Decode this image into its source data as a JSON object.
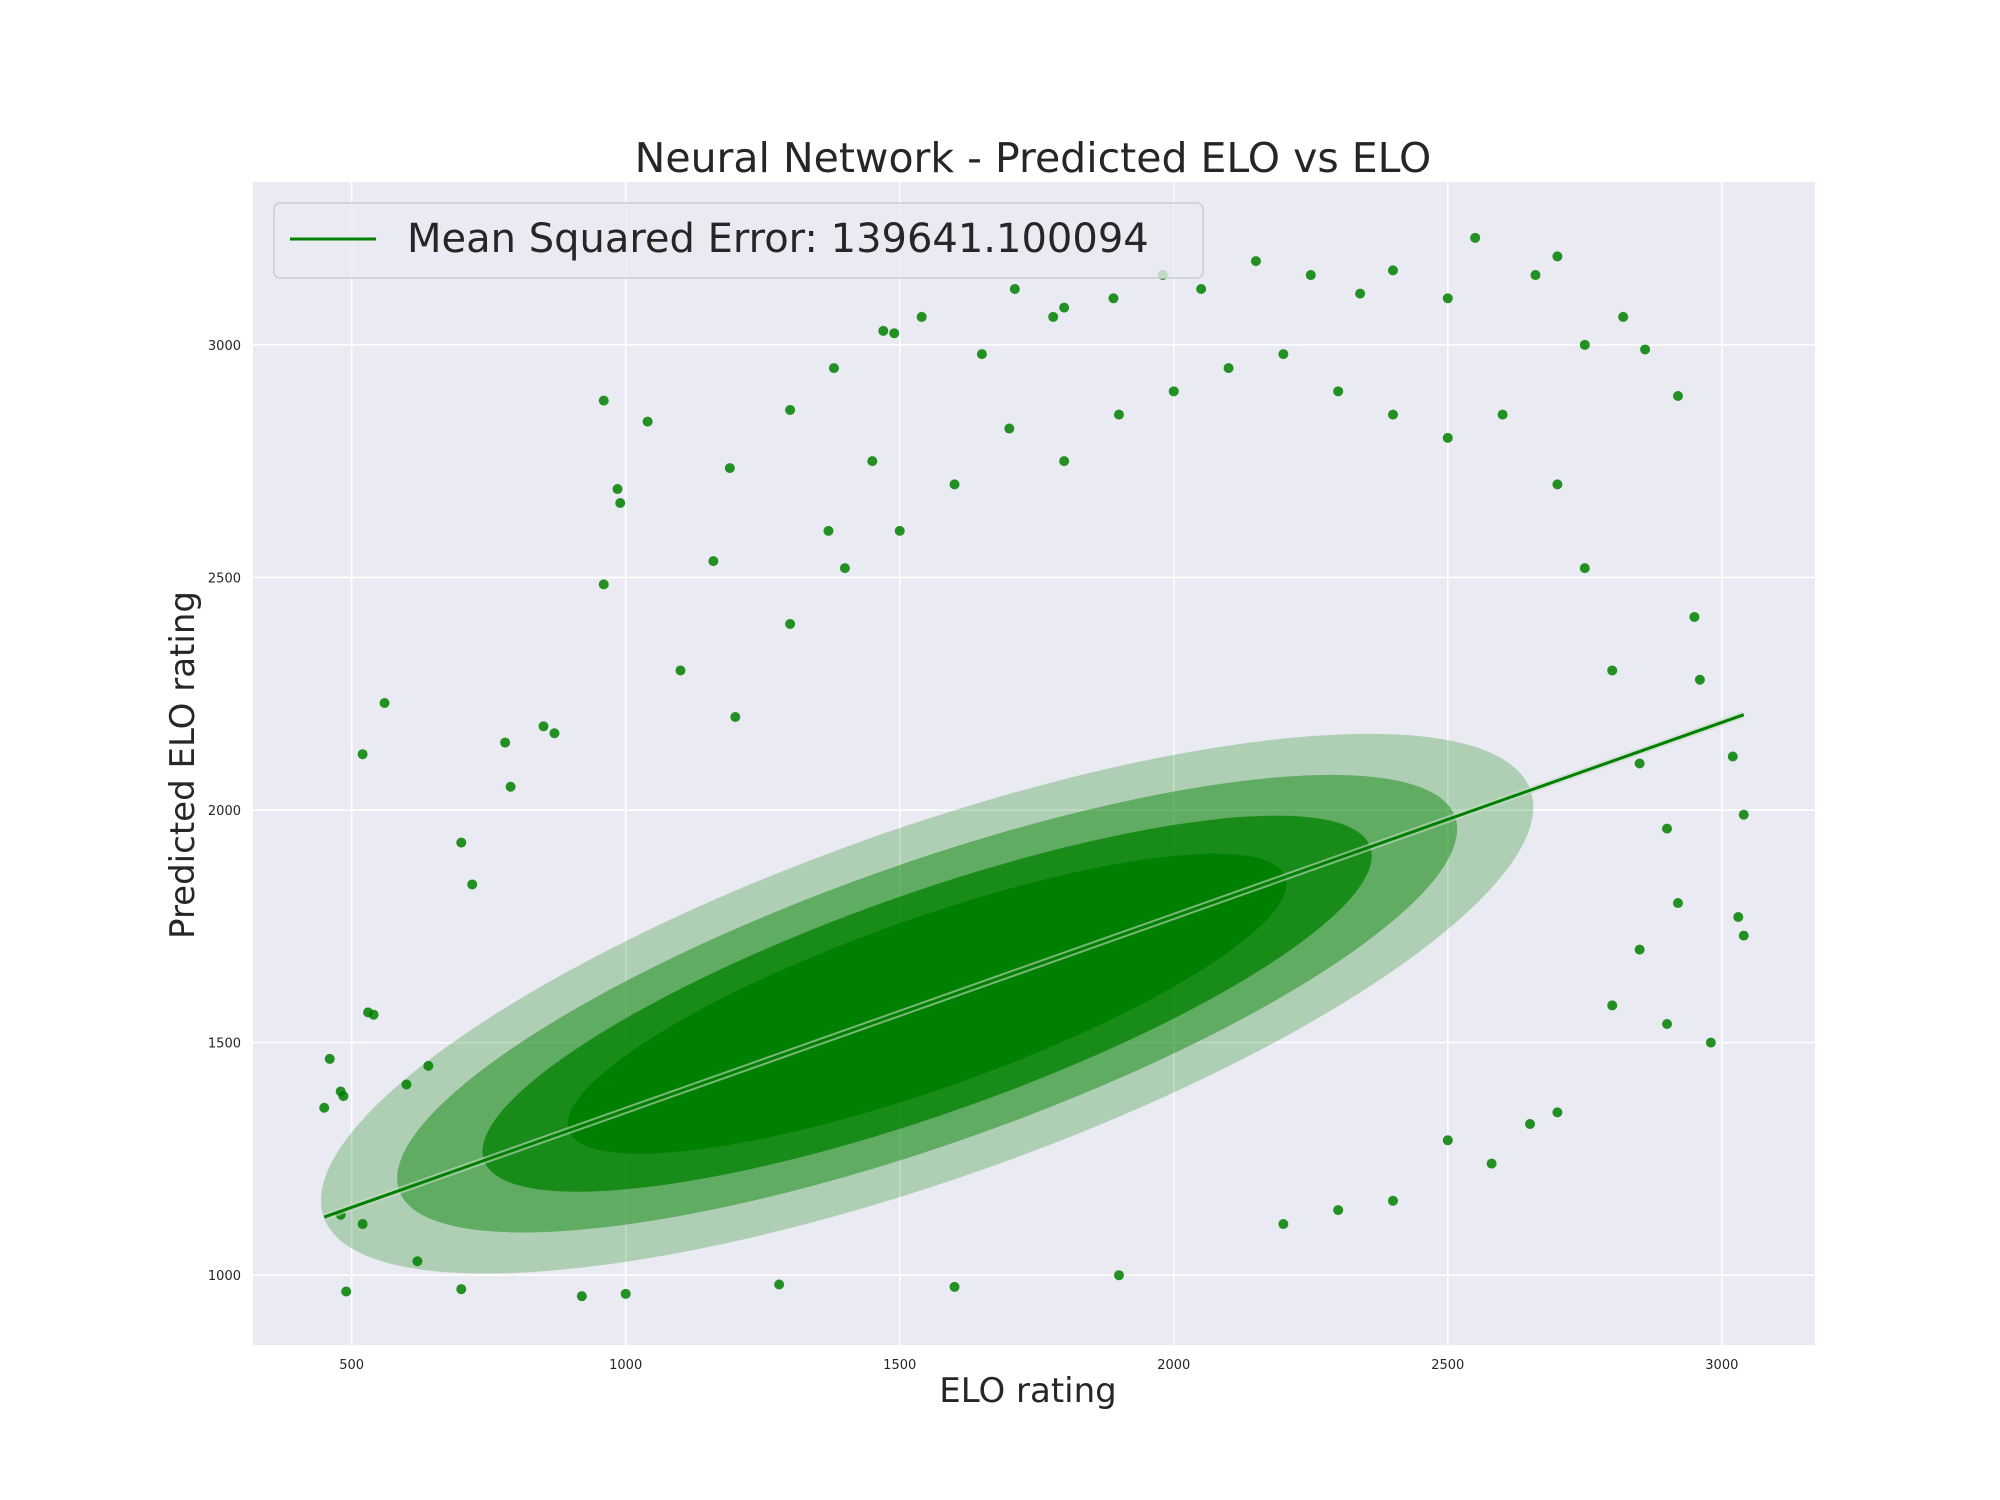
{
  "chart_data": {
    "type": "scatter",
    "title": "Neural Network - Predicted ELO vs ELO",
    "xlabel": "ELO rating",
    "ylabel": "Predicted ELO rating",
    "xlim": [
      320,
      3170
    ],
    "ylim": [
      850,
      3350
    ],
    "xticks": [
      500,
      1000,
      1500,
      2000,
      2500,
      3000
    ],
    "yticks": [
      1000,
      1500,
      2000,
      2500,
      3000
    ],
    "grid": true,
    "legend_position": "top-left",
    "legend": [
      {
        "label": "Mean Squared Error: 139641.100094",
        "color": "#008000"
      }
    ],
    "regression_line": {
      "x": [
        450,
        3040
      ],
      "y": [
        1125,
        2205
      ]
    },
    "series": [
      {
        "marker_color": "#008000",
        "points": [
          [
            450,
            1360
          ],
          [
            460,
            1465
          ],
          [
            480,
            1395
          ],
          [
            485,
            1385
          ],
          [
            490,
            965
          ],
          [
            520,
            2120
          ],
          [
            530,
            1565
          ],
          [
            540,
            1560
          ],
          [
            560,
            2230
          ],
          [
            600,
            1410
          ],
          [
            640,
            1450
          ],
          [
            700,
            1930
          ],
          [
            720,
            1840
          ],
          [
            780,
            2145
          ],
          [
            790,
            2050
          ],
          [
            850,
            2180
          ],
          [
            870,
            2165
          ],
          [
            960,
            2485
          ],
          [
            960,
            2880
          ],
          [
            985,
            2690
          ],
          [
            990,
            2660
          ],
          [
            1040,
            2835
          ],
          [
            1100,
            2300
          ],
          [
            1160,
            2535
          ],
          [
            1190,
            2735
          ],
          [
            1300,
            2860
          ],
          [
            1370,
            2600
          ],
          [
            1380,
            2950
          ],
          [
            1450,
            2750
          ],
          [
            1470,
            3030
          ],
          [
            1490,
            3025
          ],
          [
            1540,
            3060
          ],
          [
            1650,
            2980
          ],
          [
            1710,
            3120
          ],
          [
            1780,
            3060
          ],
          [
            1800,
            3080
          ],
          [
            1890,
            3100
          ],
          [
            1980,
            3150
          ],
          [
            2050,
            3120
          ],
          [
            2150,
            3180
          ],
          [
            2250,
            3150
          ],
          [
            2340,
            3110
          ],
          [
            2400,
            3160
          ],
          [
            2500,
            3100
          ],
          [
            2550,
            3230
          ],
          [
            2660,
            3150
          ],
          [
            2700,
            3190
          ],
          [
            2750,
            3000
          ],
          [
            2820,
            3060
          ],
          [
            2860,
            2990
          ],
          [
            2920,
            2890
          ],
          [
            2950,
            2415
          ],
          [
            2960,
            2280
          ],
          [
            3020,
            2115
          ],
          [
            3030,
            1770
          ],
          [
            3040,
            1990
          ],
          [
            3040,
            1730
          ],
          [
            2980,
            1500
          ],
          [
            2900,
            1540
          ],
          [
            2850,
            1700
          ],
          [
            2800,
            1580
          ],
          [
            2700,
            1350
          ],
          [
            2650,
            1325
          ],
          [
            2580,
            1240
          ],
          [
            2500,
            1290
          ],
          [
            2400,
            1160
          ],
          [
            2300,
            1140
          ],
          [
            2200,
            1110
          ],
          [
            1900,
            1000
          ],
          [
            1600,
            975
          ],
          [
            1280,
            980
          ],
          [
            1000,
            960
          ],
          [
            920,
            955
          ],
          [
            700,
            970
          ],
          [
            620,
            1030
          ],
          [
            520,
            1110
          ],
          [
            480,
            1130
          ],
          [
            1200,
            2200
          ],
          [
            1300,
            2400
          ],
          [
            1400,
            2520
          ],
          [
            1500,
            2600
          ],
          [
            1600,
            2700
          ],
          [
            1700,
            2820
          ],
          [
            1800,
            2750
          ],
          [
            1900,
            2850
          ],
          [
            2000,
            2900
          ],
          [
            2100,
            2950
          ],
          [
            2200,
            2980
          ],
          [
            2300,
            2900
          ],
          [
            2400,
            2850
          ],
          [
            2500,
            2800
          ],
          [
            2600,
            2850
          ],
          [
            2700,
            2700
          ],
          [
            2750,
            2520
          ],
          [
            2800,
            2300
          ],
          [
            2850,
            2100
          ],
          [
            2900,
            1960
          ],
          [
            2920,
            1800
          ]
        ]
      }
    ]
  }
}
